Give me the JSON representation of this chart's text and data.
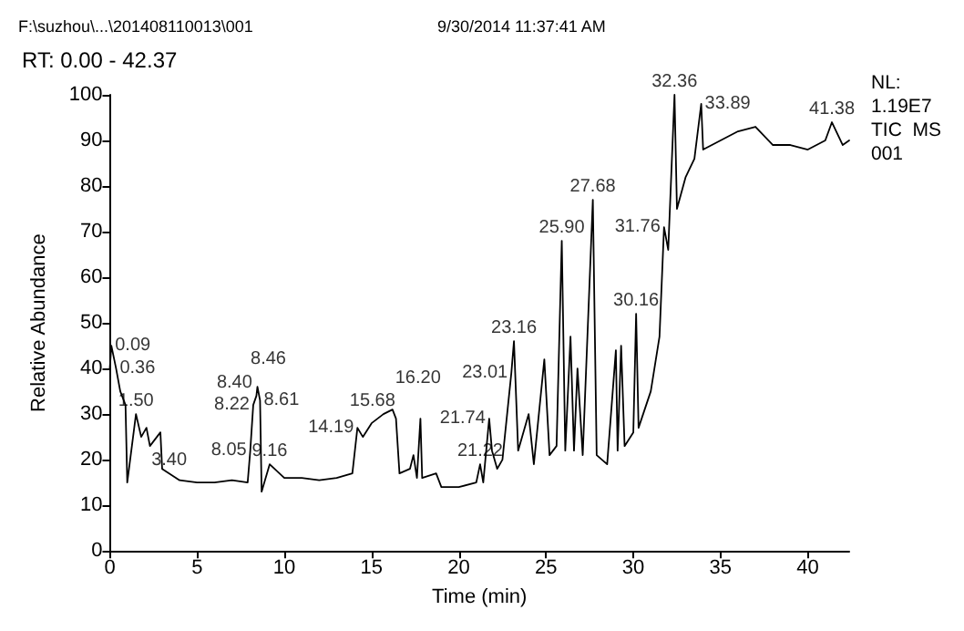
{
  "chart_data": {
    "type": "line",
    "xlabel": "Time (min)",
    "ylabel": "Relative Abundance",
    "xlim": [
      0,
      42.37
    ],
    "xticks": [
      0,
      5,
      10,
      15,
      20,
      25,
      30,
      35,
      40
    ],
    "ylim": [
      0,
      100
    ],
    "yticks": [
      0,
      10,
      20,
      30,
      40,
      50,
      60,
      70,
      80,
      90,
      100
    ],
    "grid": false,
    "marker": "none",
    "line_style": "solid",
    "series": [
      {
        "color": "#000000",
        "x": [
          0,
          0.09,
          0.36,
          0.6,
          0.9,
          1.0,
          1.5,
          1.8,
          2.1,
          2.3,
          2.7,
          2.9,
          3.0,
          3.4,
          4.0,
          5,
          6,
          7,
          7.9,
          8.05,
          8.22,
          8.4,
          8.46,
          8.61,
          8.7,
          9.16,
          10,
          11,
          12,
          13,
          13.9,
          14.19,
          14.5,
          15,
          15.68,
          16.2,
          16.4,
          16.6,
          17.2,
          17.4,
          17.6,
          17.8,
          17.9,
          18.7,
          19,
          20,
          21,
          21.22,
          21.4,
          21.74,
          21.9,
          22.2,
          22.5,
          23.01,
          23.16,
          23.4,
          24,
          24.3,
          24.9,
          25.2,
          25.6,
          25.9,
          26.1,
          26.4,
          26.6,
          26.8,
          27.1,
          27.68,
          27.9,
          28.5,
          29,
          29.1,
          29.3,
          29.5,
          30,
          30.16,
          30.3,
          31,
          31.5,
          31.76,
          32,
          32.36,
          32.5,
          33,
          33.5,
          33.89,
          34,
          35,
          36,
          37,
          38,
          39,
          40,
          41,
          41.38,
          42,
          42.37
        ],
        "values": [
          40,
          45,
          40,
          35,
          32,
          15,
          30,
          25,
          27,
          23,
          25,
          26,
          18,
          17,
          15.5,
          15,
          15,
          15.5,
          15,
          22,
          32,
          34,
          36,
          33,
          13,
          19,
          16,
          16,
          15.5,
          16,
          17,
          27,
          25,
          28,
          30,
          31,
          29,
          17,
          18,
          21,
          16,
          29,
          16,
          17,
          14,
          14,
          15,
          19,
          15,
          29,
          22,
          18,
          20,
          39,
          46,
          22,
          30,
          19,
          42,
          21,
          23,
          68,
          22,
          47,
          22,
          40,
          21,
          77,
          21,
          19,
          44,
          22,
          45,
          23,
          26,
          52,
          27,
          35,
          47,
          71,
          66,
          100,
          75,
          82,
          86,
          98,
          88,
          90,
          92,
          93,
          89,
          89,
          88,
          90,
          94,
          89,
          90
        ]
      }
    ],
    "annotations": [
      "F:\\suzhou\\...\\201408110013\\001",
      "9/30/2014 11:37:41 AM",
      "RT: 0.00 - 42.37",
      "NL:",
      "1.19E7",
      "TIC  MS",
      "001",
      {
        "text": "0.09",
        "x": 0.09,
        "y": 45
      },
      {
        "text": "0.36",
        "x": 0.36,
        "y": 40
      },
      {
        "text": "1.50",
        "x": 1.5,
        "y": 30
      },
      {
        "text": "3.40",
        "x": 3.4,
        "y": 17
      },
      {
        "text": "8.05",
        "x": 8.05,
        "y": 22
      },
      {
        "text": "8.22",
        "x": 8.22,
        "y": 32
      },
      {
        "text": "8.40",
        "x": 8.4,
        "y": 34
      },
      {
        "text": "8.46",
        "x": 8.46,
        "y": 36
      },
      {
        "text": "8.61",
        "x": 8.61,
        "y": 33
      },
      {
        "text": "9.16",
        "x": 9.16,
        "y": 19
      },
      {
        "text": "14.19",
        "x": 14.19,
        "y": 27
      },
      {
        "text": "15.68",
        "x": 15.68,
        "y": 30
      },
      {
        "text": "16.20",
        "x": 16.2,
        "y": 31
      },
      {
        "text": "21.22",
        "x": 21.22,
        "y": 19
      },
      {
        "text": "21.74",
        "x": 21.74,
        "y": 29
      },
      {
        "text": "23.01",
        "x": 23.01,
        "y": 39
      },
      {
        "text": "23.16",
        "x": 23.16,
        "y": 46
      },
      {
        "text": "25.90",
        "x": 25.9,
        "y": 68
      },
      {
        "text": "27.68",
        "x": 27.68,
        "y": 77
      },
      {
        "text": "30.16",
        "x": 30.16,
        "y": 52
      },
      {
        "text": "31.76",
        "x": 31.76,
        "y": 71
      },
      {
        "text": "32.36",
        "x": 32.36,
        "y": 100
      },
      {
        "text": "33.89",
        "x": 33.89,
        "y": 98
      },
      {
        "text": "41.38",
        "x": 41.38,
        "y": 94
      }
    ]
  }
}
